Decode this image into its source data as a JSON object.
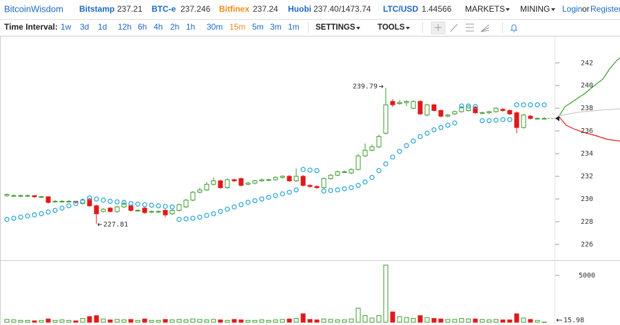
{
  "header": {
    "brand": "BitcoinWisdom",
    "exchanges": [
      {
        "name": "Bitstamp",
        "price": "237.21"
      },
      {
        "name": "BTC-e",
        "price": "237.246"
      },
      {
        "name": "Bitfinex",
        "price": "237.24"
      },
      {
        "name": "Huobi",
        "price": "237.40/1473.74"
      },
      {
        "name": "LTC/USD",
        "price": "1.44566"
      }
    ],
    "menus": [
      "MARKETS",
      "MINING"
    ],
    "login": "Login",
    "or": "or",
    "register": "Register"
  },
  "toolbar": {
    "label": "Time Interval:",
    "intervals": [
      "1w",
      "3d",
      "1d",
      "12h",
      "6h",
      "4h",
      "2h",
      "1h",
      "30m",
      "15m",
      "5m",
      "3m",
      "1m"
    ],
    "active": "15m",
    "menus": [
      "SETTINGS",
      "TOOLS"
    ]
  },
  "chart_data": [
    {
      "type": "candlestick",
      "up_color": "#3a9a2a",
      "down_color": "#e01a1a",
      "sar_color": "#2fa8d8",
      "ylim": [
        224.6,
        244.2
      ],
      "yticks": [
        226,
        228,
        230,
        232,
        234,
        236,
        238,
        240,
        242
      ],
      "open": [
        230.3,
        230.3,
        230.3,
        230.3,
        230.3,
        230.2,
        230.2,
        229.8,
        229.8,
        229.8,
        229.8,
        229.6,
        230.0,
        229.4,
        228.9,
        229.2,
        228.9,
        229.3,
        229.4,
        229.0,
        229.2,
        228.9,
        228.9,
        229.0,
        228.7,
        229.0,
        229.3,
        229.9,
        230.6,
        230.8,
        231.3,
        231.6,
        231.0,
        231.7,
        231.8,
        231.3,
        231.4,
        231.6,
        231.7,
        231.7,
        231.9,
        232.0,
        231.6,
        232.0,
        231.2,
        231.1,
        231.0,
        231.8,
        232.1,
        232.4,
        232.3,
        232.6,
        233.8,
        234.3,
        234.6,
        235.8,
        238.6,
        238.4,
        238.5,
        238.0,
        238.6,
        237.4,
        238.3,
        237.8,
        237.3,
        237.5,
        237.7,
        237.8,
        238.1,
        237.6,
        237.6,
        237.7,
        237.9,
        237.8,
        237.6,
        236.3,
        237.3,
        237.1,
        237.1
      ],
      "high": [
        230.5,
        230.4,
        230.4,
        230.4,
        230.3,
        230.3,
        230.2,
        229.9,
        229.9,
        229.9,
        229.8,
        230.0,
        230.1,
        229.5,
        229.2,
        229.3,
        229.4,
        229.8,
        229.5,
        229.1,
        229.3,
        229.0,
        229.0,
        229.1,
        229.1,
        229.6,
        230.0,
        230.7,
        231.0,
        231.5,
        231.9,
        231.7,
        231.8,
        231.8,
        231.9,
        231.5,
        231.7,
        231.8,
        231.8,
        232.0,
        232.1,
        232.1,
        232.7,
        232.1,
        231.3,
        231.2,
        231.9,
        232.2,
        232.5,
        232.5,
        232.7,
        234.0,
        234.9,
        234.8,
        235.7,
        239.79,
        238.8,
        238.7,
        238.7,
        238.7,
        238.7,
        238.4,
        238.4,
        237.9,
        237.5,
        237.8,
        238.2,
        238.3,
        238.2,
        237.7,
        237.8,
        238.1,
        238.0,
        237.9,
        237.7,
        237.5,
        237.4,
        237.2,
        237.2
      ],
      "low": [
        230.2,
        230.2,
        230.2,
        230.2,
        230.1,
        230.1,
        229.6,
        229.7,
        229.7,
        229.7,
        229.6,
        229.5,
        229.3,
        227.81,
        228.8,
        228.8,
        228.8,
        229.2,
        228.9,
        228.9,
        228.7,
        228.8,
        228.8,
        228.4,
        228.6,
        228.9,
        229.2,
        229.8,
        230.5,
        230.7,
        231.2,
        230.9,
        230.9,
        231.5,
        231.1,
        231.2,
        231.3,
        231.5,
        231.6,
        231.6,
        231.8,
        231.5,
        231.5,
        231.1,
        231.0,
        230.9,
        230.9,
        231.7,
        232.0,
        232.3,
        232.2,
        232.5,
        233.7,
        234.2,
        234.5,
        235.7,
        238.1,
        238.3,
        238.2,
        237.9,
        237.4,
        237.3,
        237.7,
        237.2,
        237.2,
        237.4,
        237.6,
        237.7,
        237.5,
        237.5,
        237.5,
        237.6,
        237.7,
        237.4,
        235.8,
        236.2,
        237.0,
        237.0,
        237.0
      ],
      "close": [
        230.4,
        230.3,
        230.3,
        230.3,
        230.2,
        230.2,
        229.7,
        229.8,
        229.8,
        229.8,
        229.7,
        229.9,
        229.4,
        228.7,
        229.1,
        228.9,
        229.3,
        229.6,
        229.0,
        229.0,
        228.8,
        228.9,
        228.9,
        228.6,
        229.0,
        229.5,
        229.9,
        230.6,
        230.8,
        231.3,
        231.6,
        231.0,
        231.7,
        231.6,
        231.2,
        231.4,
        231.6,
        231.7,
        231.7,
        231.9,
        232.0,
        231.6,
        232.0,
        231.2,
        231.1,
        231.0,
        231.8,
        232.1,
        232.4,
        232.4,
        232.6,
        233.8,
        234.3,
        234.6,
        235.5,
        238.3,
        238.3,
        238.5,
        238.6,
        238.6,
        237.5,
        238.3,
        237.8,
        237.3,
        237.4,
        237.7,
        238.1,
        238.2,
        237.6,
        237.6,
        237.7,
        238.0,
        237.8,
        237.5,
        236.3,
        237.4,
        237.1,
        237.1,
        237.1
      ],
      "sar": [
        228.2,
        228.3,
        228.4,
        228.5,
        228.6,
        228.7,
        228.85,
        229.0,
        229.2,
        229.4,
        229.6,
        229.8,
        230.1,
        230.0,
        229.9,
        229.8,
        229.75,
        229.7,
        229.6,
        229.55,
        229.5,
        229.45,
        229.4,
        229.35,
        229.3,
        228.2,
        228.25,
        228.3,
        228.4,
        228.55,
        228.7,
        228.9,
        229.1,
        229.3,
        229.5,
        229.7,
        229.85,
        230.0,
        230.15,
        230.3,
        230.45,
        230.6,
        230.8,
        232.6,
        232.55,
        232.5,
        230.7,
        230.75,
        230.8,
        230.9,
        231.0,
        231.2,
        231.5,
        231.9,
        232.5,
        233.1,
        233.7,
        234.2,
        234.7,
        235.1,
        235.5,
        235.8,
        236.1,
        236.3,
        236.5,
        236.7,
        238.2,
        238.2,
        238.15,
        236.9,
        236.9,
        236.95,
        237.0,
        237.0,
        238.3,
        238.3,
        238.3,
        238.3,
        238.3
      ]
    },
    {
      "type": "bar",
      "ylim": [
        0,
        6470
      ],
      "yticks": [
        5000
      ],
      "values": [
        300,
        250,
        200,
        200,
        150,
        200,
        350,
        200,
        250,
        200,
        150,
        400,
        600,
        700,
        350,
        250,
        300,
        250,
        300,
        200,
        350,
        200,
        200,
        300,
        250,
        300,
        250,
        350,
        300,
        250,
        300,
        250,
        200,
        300,
        250,
        200,
        200,
        250,
        200,
        250,
        300,
        350,
        400,
        900,
        300,
        250,
        350,
        300,
        250,
        250,
        350,
        1500,
        700,
        450,
        700,
        6100,
        1100,
        600,
        500,
        400,
        700,
        500,
        400,
        350,
        300,
        300,
        400,
        350,
        350,
        300,
        250,
        300,
        250,
        250,
        900,
        450,
        300,
        200,
        15.98
      ]
    }
  ]
}
